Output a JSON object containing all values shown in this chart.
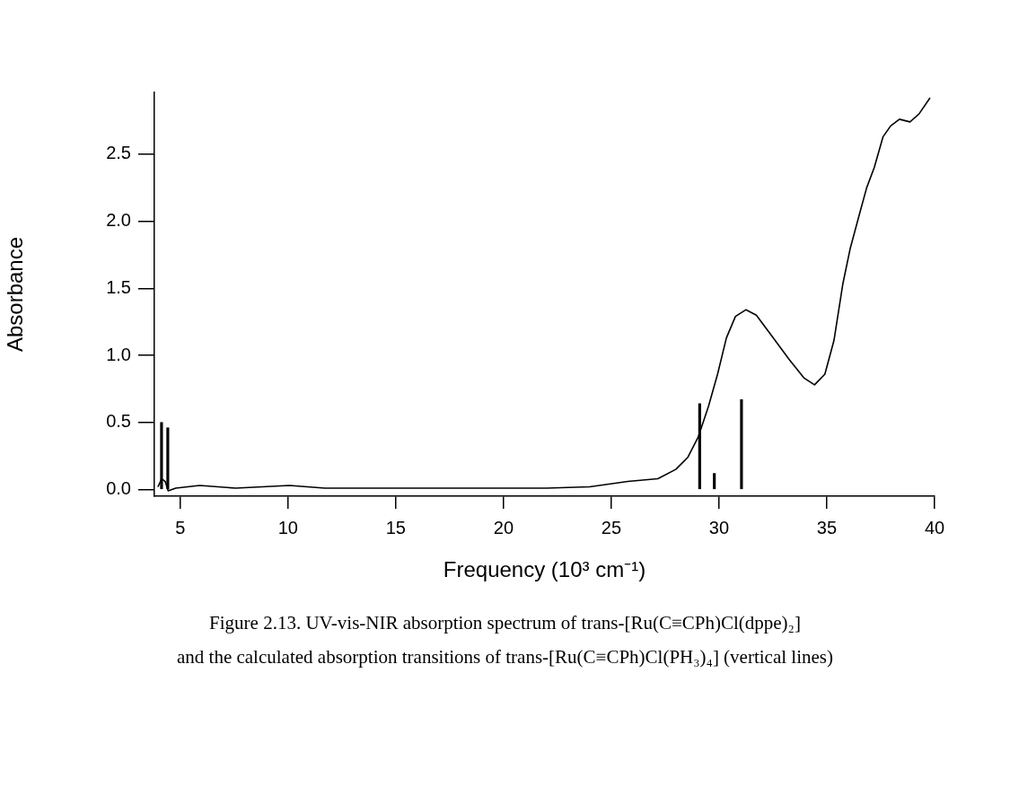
{
  "chart_data": {
    "type": "line",
    "xlabel": "Frequency (10³ cm⁻¹)",
    "ylabel": "Absorbance",
    "annotations": [
      "Figure 2.13.  UV-vis-NIR absorption spectrum of trans-[Ru(C≡CPh)Cl(dppe)₂]",
      "and the calculated absorption transitions of trans-[Ru(C≡CPh)Cl(PH₃)₄] (vertical lines)"
    ],
    "xlim": [
      3.8,
      40
    ],
    "xticks": [
      5,
      10,
      15,
      20,
      25,
      30,
      35,
      40
    ],
    "ylim": [
      -0.05,
      2.96
    ],
    "yticks": [
      {
        "value": 0,
        "label": "0.0"
      },
      {
        "value": 0.5,
        "label": "0.5"
      },
      {
        "value": 1,
        "label": "1.0"
      },
      {
        "value": 1.5,
        "label": "1.5"
      },
      {
        "value": 2,
        "label": "2.0"
      },
      {
        "value": 2.5,
        "label": "2.5"
      }
    ],
    "legend": false,
    "marker": "none",
    "series": [
      {
        "color": "#000000",
        "x": [
          3.96,
          4.14,
          4.3,
          4.44,
          4.79,
          5.9,
          7.57,
          10.07,
          11.7,
          15.35,
          22,
          24,
          25.77,
          27.16,
          27.99,
          28.55,
          29.03,
          29.51,
          29.93,
          30.34,
          30.76,
          31.25,
          31.73,
          32.42,
          33.25,
          33.95,
          34.43,
          34.91,
          35.33,
          35.74,
          36.09,
          36.51,
          36.85,
          37.2,
          37.61,
          37.96,
          38.37,
          38.86,
          39.28,
          39.79
        ],
        "values": [
          0.02,
          0.08,
          0.06,
          -0.01,
          0.01,
          0.03,
          0.01,
          0.03,
          0.01,
          0.01,
          0.01,
          0.02,
          0.06,
          0.08,
          0.15,
          0.24,
          0.39,
          0.62,
          0.86,
          1.13,
          1.29,
          1.34,
          1.3,
          1.15,
          0.97,
          0.83,
          0.78,
          0.86,
          1.11,
          1.53,
          1.8,
          2.05,
          2.25,
          2.4,
          2.63,
          2.71,
          2.76,
          2.74,
          2.8,
          2.92
        ]
      },
      {
        "type": "bar",
        "color": "#000000",
        "x": [
          4.13,
          4.42,
          29.1,
          29.78,
          31.04
        ],
        "values": [
          0.5,
          0.46,
          0.64,
          0.12,
          0.67
        ]
      }
    ]
  }
}
